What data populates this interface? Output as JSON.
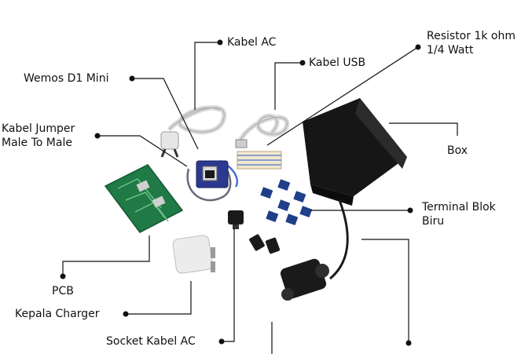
{
  "labels": {
    "kabel_ac": "Kabel AC",
    "resistor_line1": "Resistor 1k ohm",
    "resistor_line2": "1/4 Watt",
    "kabel_usb": "Kabel USB",
    "wemos": "Wemos D1 Mini",
    "jumper_line1": "Kabel Jumper",
    "jumper_line2": "Male To Male",
    "box": "Box",
    "terminal_line1": "Terminal Blok",
    "terminal_line2": "Biru",
    "pcb": "PCB",
    "kepala_charger": "Kepala Charger",
    "socket_kabel_ac": "Socket Kabel AC"
  },
  "colors": {
    "ink": "#111111",
    "pcb_green": "#1f7a45",
    "box_black": "#161616",
    "terminal_blue": "#1f3f88"
  }
}
